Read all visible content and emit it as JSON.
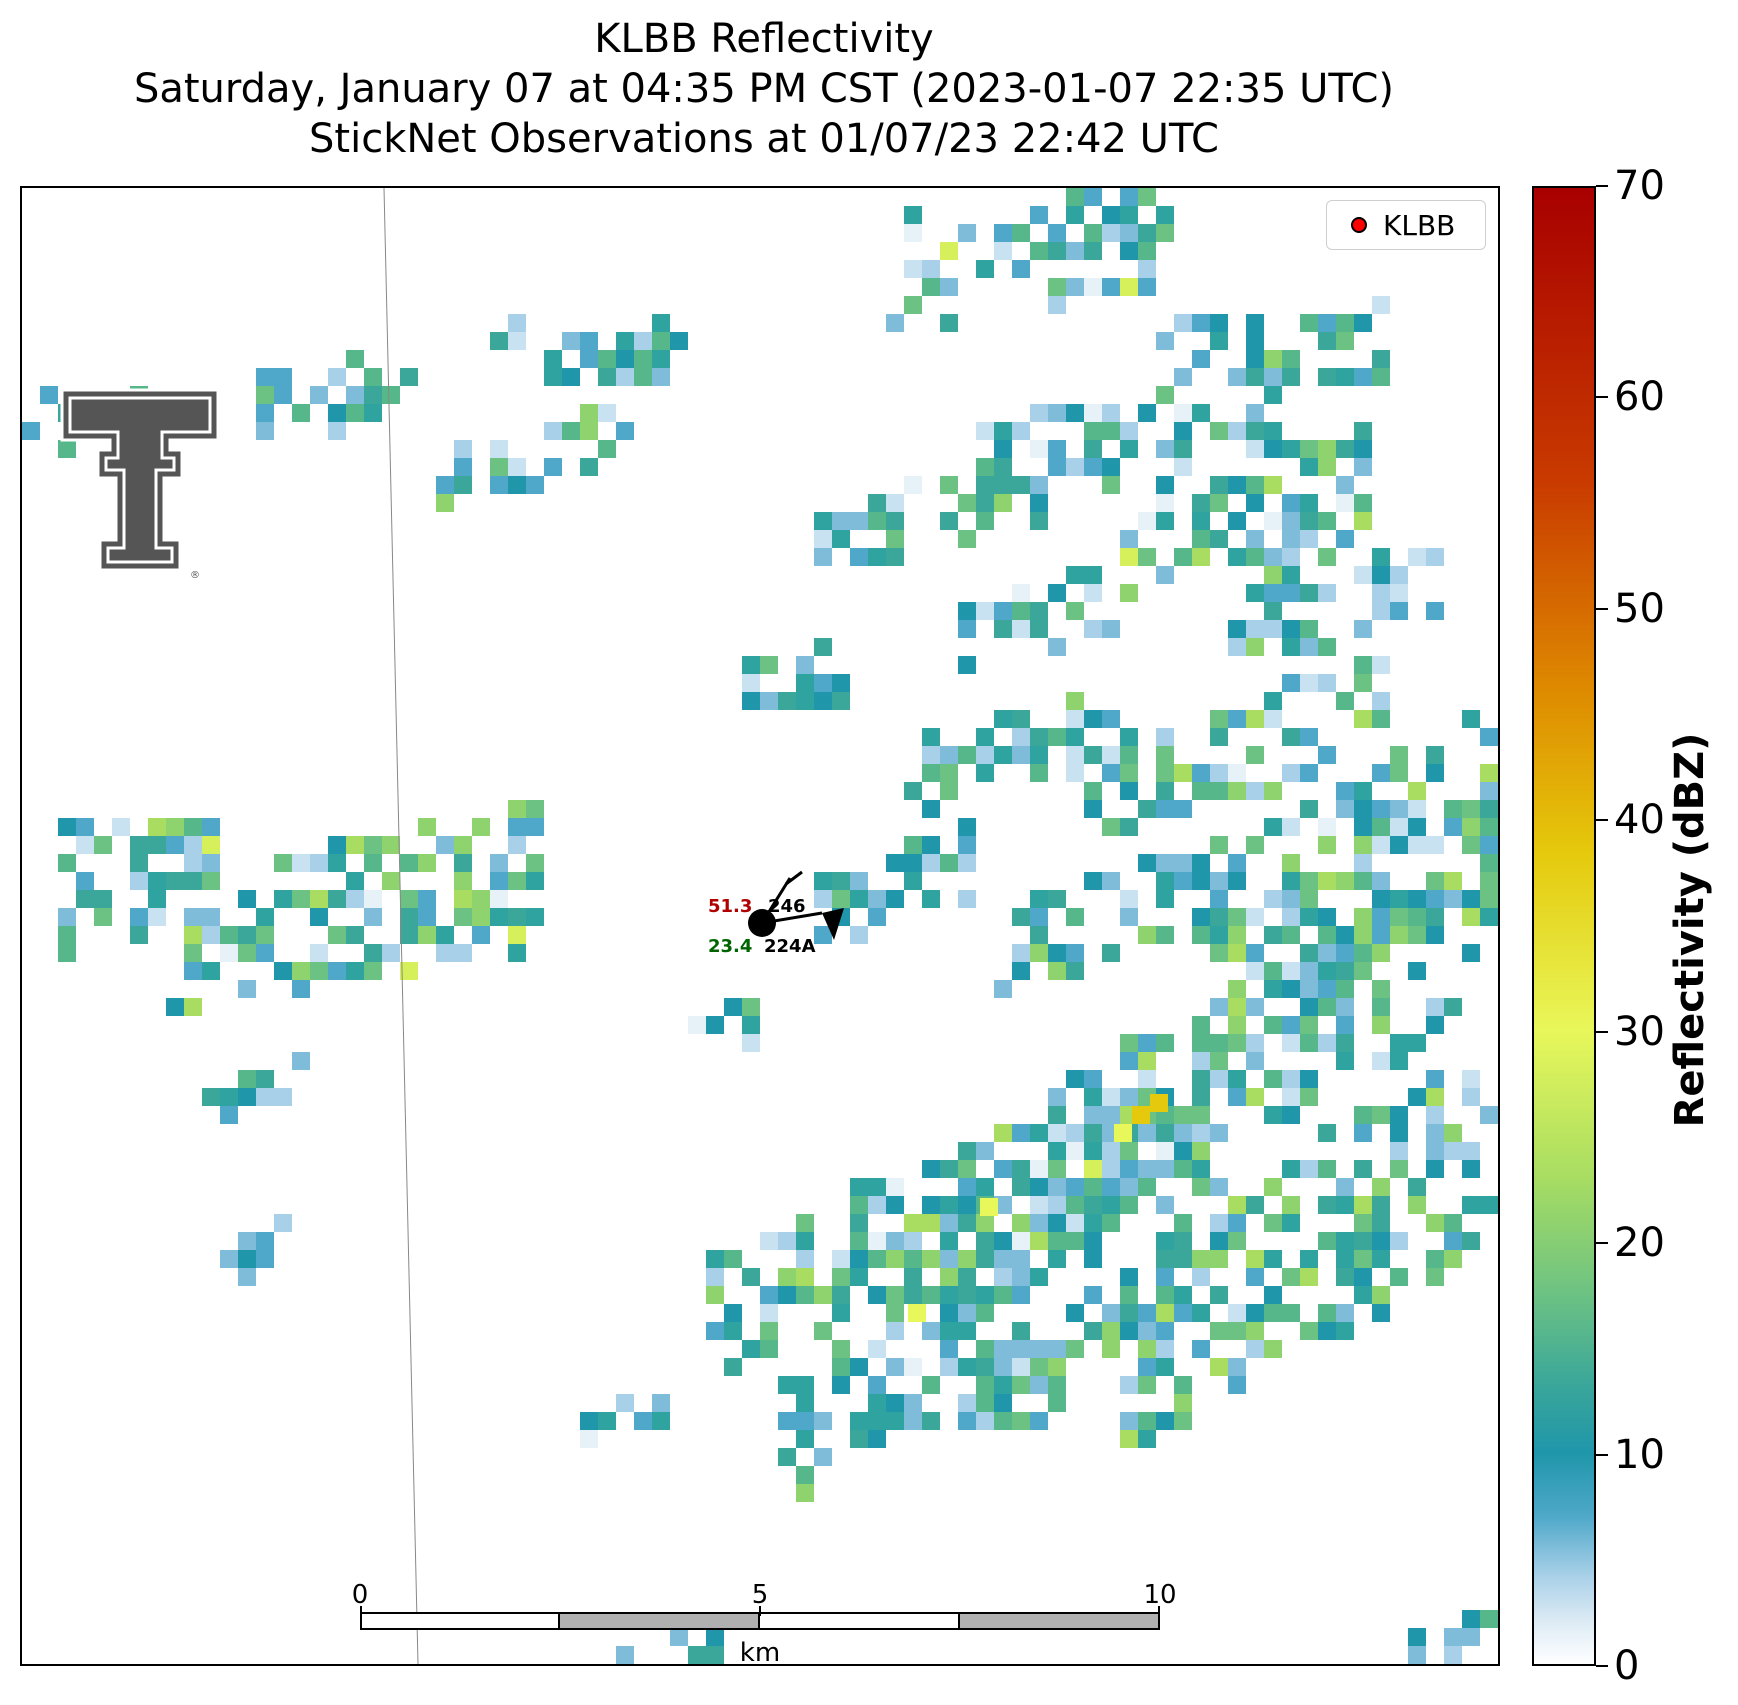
{
  "title": {
    "line1": "KLBB Reflectivity",
    "line2": "Saturday, January 07 at 04:35 PM CST (2023-01-07 22:35 UTC)",
    "line3": "StickNet Observations at 01/07/23 22:42 UTC"
  },
  "legend": {
    "label": "KLBB",
    "marker_color": "#ff0000"
  },
  "colorbar": {
    "label": "Reflectivity (dBZ)",
    "min": 0,
    "max": 70,
    "ticks": [
      "0",
      "10",
      "20",
      "30",
      "40",
      "50",
      "60",
      "70"
    ],
    "colors": [
      "#ffffff",
      "#a8d0e8",
      "#1f96aa",
      "#6cc283",
      "#e8f75a",
      "#e5c90c",
      "#de8a00",
      "#c93b00",
      "#a80000"
    ]
  },
  "scale_bar": {
    "ticks": [
      "0",
      "5",
      "10"
    ],
    "unit": "km"
  },
  "station": {
    "temperature": "51.3",
    "dewpoint": "23.4",
    "pressure": "246",
    "station_id": "224A",
    "temperature_color": "#b00000",
    "dewpoint_color": "#006400"
  },
  "logo": {
    "name": "texas-tech-double-t-logo",
    "color": "#555555"
  }
}
